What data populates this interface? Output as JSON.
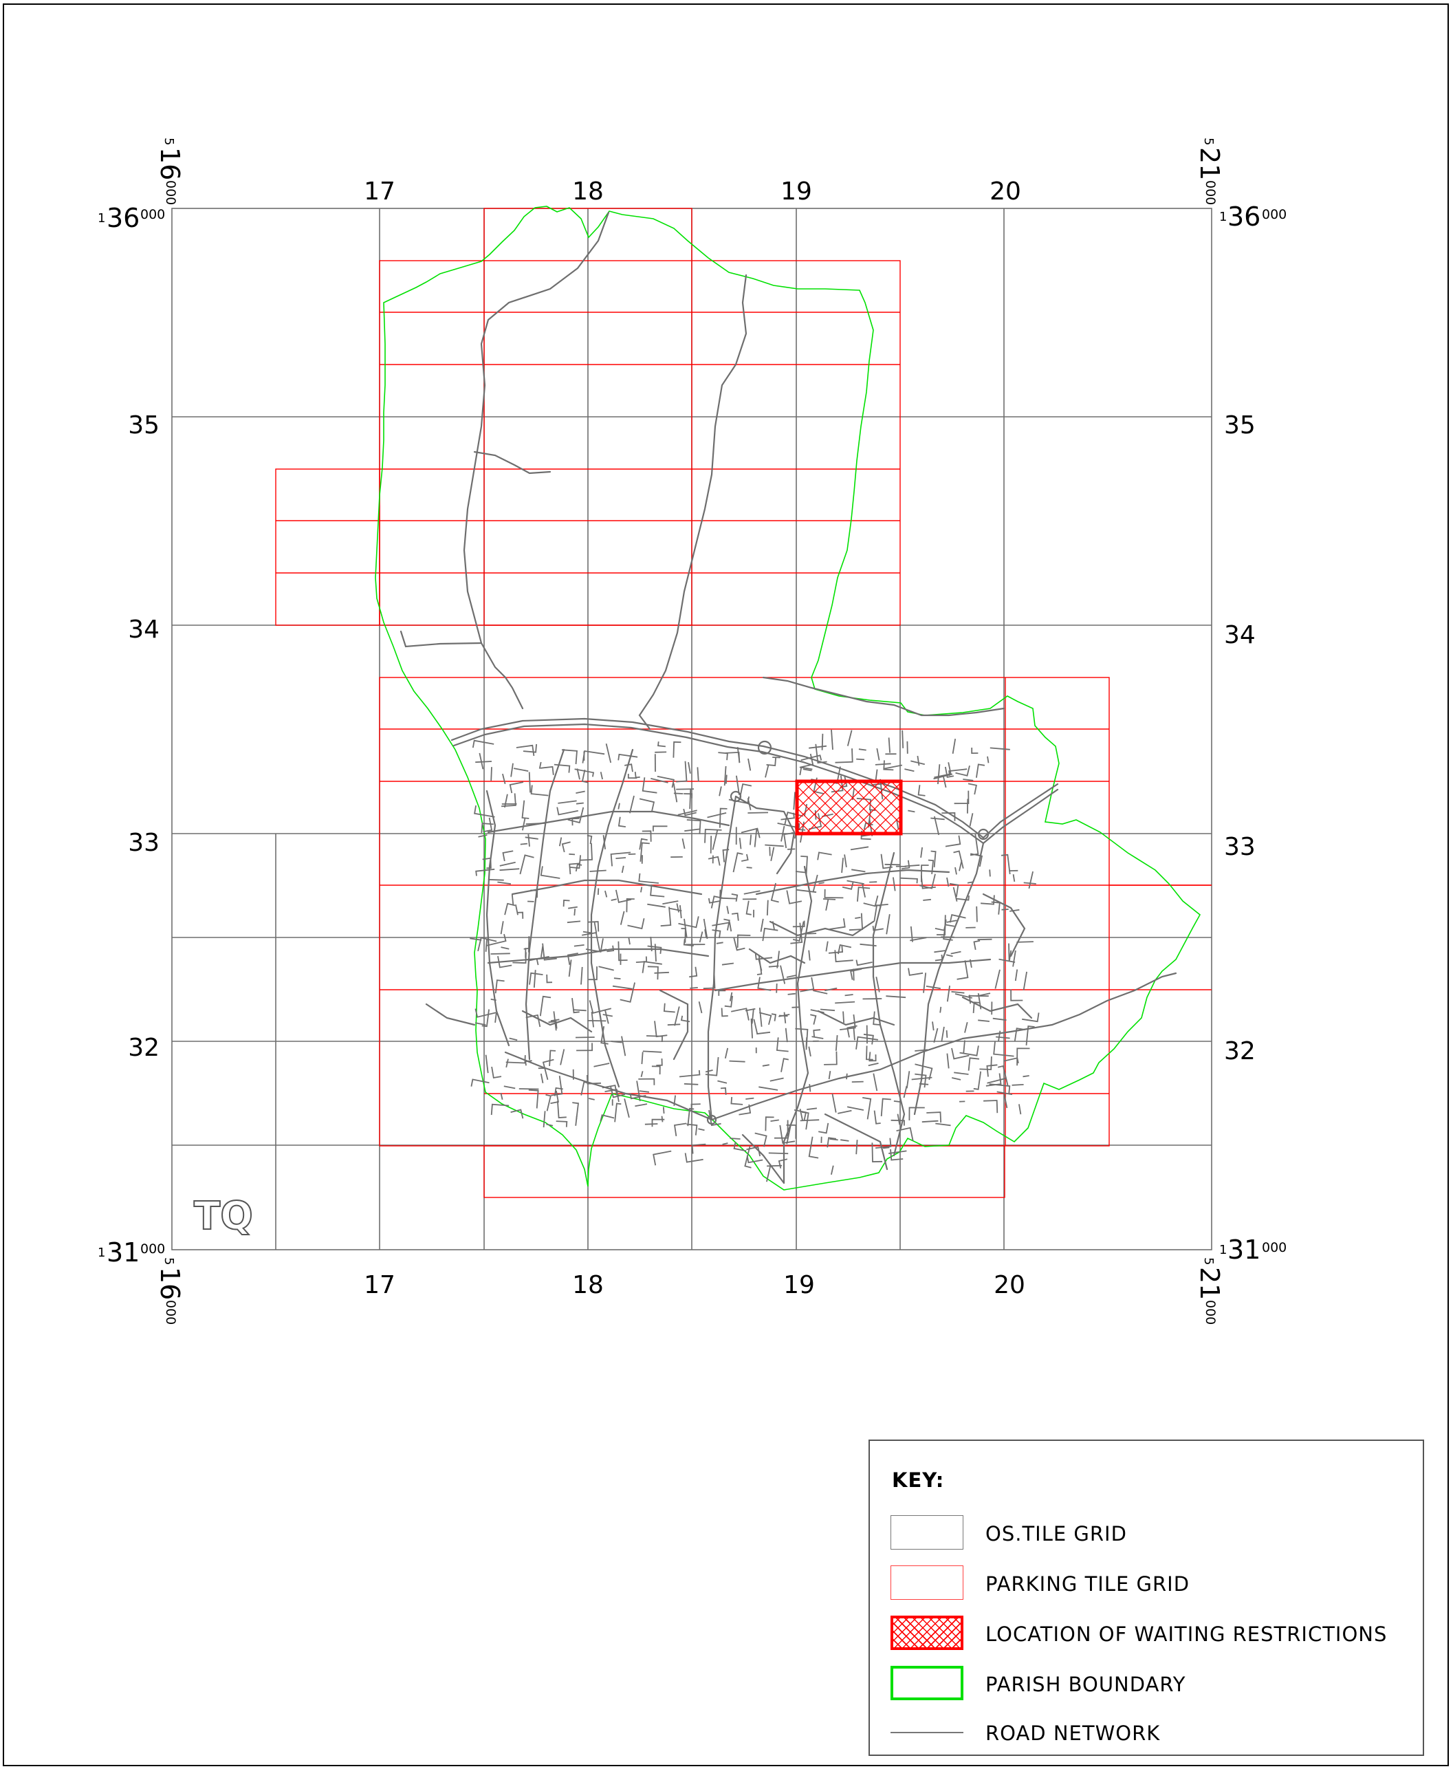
{
  "map": {
    "grid_letters": "TQ",
    "easting_labels": [
      "17",
      "18",
      "19",
      "20"
    ],
    "northing_labels": [
      "35",
      "34",
      "33",
      "32"
    ],
    "corner_labels": {
      "top_left_easting": {
        "prefix": "5",
        "main": "16",
        "suffix": "000"
      },
      "top_right_easting": {
        "prefix": "5",
        "main": "21",
        "suffix": "000"
      },
      "bottom_left_easting": {
        "prefix": "5",
        "main": "16",
        "suffix": "000"
      },
      "bottom_right_easting": {
        "prefix": "5",
        "main": "21",
        "suffix": "000"
      },
      "top_left_northing": {
        "prefix": "1",
        "main": "36",
        "suffix": "000"
      },
      "top_right_northing": {
        "prefix": "1",
        "main": "36",
        "suffix": "000"
      },
      "bottom_left_northing": {
        "prefix": "1",
        "main": "31",
        "suffix": "000"
      },
      "bottom_right_northing": {
        "prefix": "1",
        "main": "31",
        "suffix": "000"
      }
    },
    "colors": {
      "os_grid": "#6e6e6e",
      "parking_grid": "#ff0000",
      "restriction": "#ff0000",
      "parish_boundary": "#00e000",
      "road": "#6e6e6e"
    }
  },
  "key": {
    "title": "KEY:",
    "items": [
      {
        "swatch": "os-grid",
        "label": "OS.TILE GRID"
      },
      {
        "swatch": "parking-grid",
        "label": "PARKING TILE GRID"
      },
      {
        "swatch": "restriction",
        "label": "LOCATION OF WAITING RESTRICTIONS"
      },
      {
        "swatch": "parish",
        "label": "PARISH BOUNDARY"
      },
      {
        "swatch": "road",
        "label": "ROAD NETWORK"
      }
    ]
  }
}
